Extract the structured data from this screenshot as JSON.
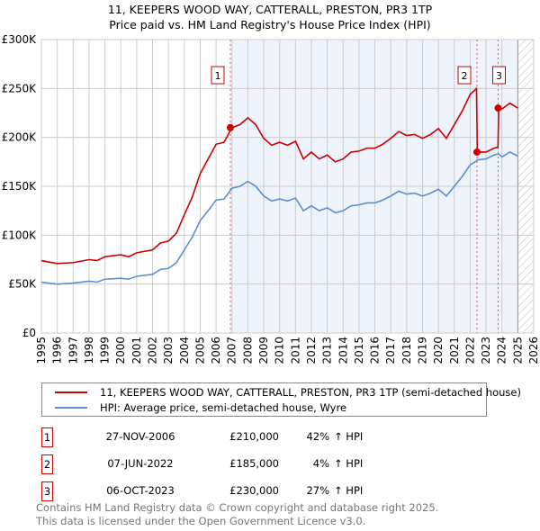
{
  "title_line1": "11, KEEPERS WOOD WAY, CATTERALL, PRESTON, PR3 1TP",
  "title_line2": "Price paid vs. HM Land Registry's House Price Index (HPI)",
  "colors": {
    "property": "#cc0000",
    "hpi": "#5b8fd0",
    "shade": "#eef3fc"
  },
  "chart_data": {
    "type": "line",
    "title": "11, KEEPERS WOOD WAY, CATTERALL, PRESTON, PR3 1TP — Price paid vs. HM Land Registry's House Price Index (HPI)",
    "xlim": [
      1995,
      2026
    ],
    "ylim": [
      0,
      300000
    ],
    "x_ticks": [
      "1995",
      "1996",
      "1997",
      "1998",
      "1999",
      "2000",
      "2001",
      "2002",
      "2003",
      "2004",
      "2005",
      "2006",
      "2007",
      "2008",
      "2009",
      "2010",
      "2011",
      "2012",
      "2013",
      "2014",
      "2015",
      "2016",
      "2017",
      "2018",
      "2019",
      "2020",
      "2021",
      "2022",
      "2023",
      "2024",
      "2025",
      "2026"
    ],
    "y_ticks": [
      {
        "v": 0,
        "label": "£0"
      },
      {
        "v": 50000,
        "label": "£50K"
      },
      {
        "v": 100000,
        "label": "£100K"
      },
      {
        "v": 150000,
        "label": "£150K"
      },
      {
        "v": 200000,
        "label": "£200K"
      },
      {
        "v": 250000,
        "label": "£250K"
      },
      {
        "v": 300000,
        "label": "£300K"
      }
    ],
    "grid": true,
    "shaded_range": [
      2006.9,
      2025
    ],
    "future_hatched_from": 2025,
    "series": [
      {
        "name": "11, KEEPERS WOOD WAY, CATTERALL, PRESTON, PR3 1TP (semi-detached house)",
        "color": "#cc0000",
        "x": [
          1995,
          1996,
          1997,
          1998,
          1998.5,
          1999,
          2000,
          2000.5,
          2001,
          2002,
          2002.5,
          2003,
          2003.5,
          2004,
          2004.5,
          2005,
          2005.5,
          2006,
          2006.5,
          2007,
          2007.5,
          2008,
          2008.5,
          2009,
          2009.5,
          2010,
          2010.5,
          2011,
          2011.5,
          2012,
          2012.5,
          2013,
          2013.5,
          2014,
          2014.5,
          2015,
          2015.5,
          2016,
          2016.5,
          2017,
          2017.5,
          2018,
          2018.5,
          2019,
          2019.5,
          2020,
          2020.5,
          2021,
          2021.5,
          2022,
          2022.4,
          2022.45,
          2023,
          2023.5,
          2023.75,
          2023.8,
          2024,
          2024.5,
          2025
        ],
        "y": [
          74000,
          71000,
          72000,
          75000,
          74000,
          78000,
          80000,
          78000,
          82000,
          85000,
          92000,
          94000,
          102000,
          121000,
          139000,
          163000,
          178000,
          193000,
          195000,
          210000,
          213000,
          220000,
          213000,
          199000,
          192000,
          195000,
          192000,
          196000,
          178000,
          185000,
          178000,
          182000,
          175000,
          178000,
          185000,
          186000,
          189000,
          189000,
          193000,
          199000,
          206000,
          202000,
          203000,
          199000,
          203000,
          209000,
          199000,
          213000,
          227000,
          244000,
          250000,
          185000,
          185000,
          189000,
          190000,
          230000,
          229000,
          235000,
          230000
        ]
      },
      {
        "name": "HPI: Average price, semi-detached house, Wyre",
        "color": "#5b8fd0",
        "x": [
          1995,
          1996,
          1997,
          1998,
          1998.5,
          1999,
          2000,
          2000.5,
          2001,
          2002,
          2002.5,
          2003,
          2003.5,
          2004,
          2004.5,
          2005,
          2005.5,
          2006,
          2006.5,
          2007,
          2007.5,
          2008,
          2008.5,
          2009,
          2009.5,
          2010,
          2010.5,
          2011,
          2011.5,
          2012,
          2012.5,
          2013,
          2013.5,
          2014,
          2014.5,
          2015,
          2015.5,
          2016,
          2016.5,
          2017,
          2017.5,
          2018,
          2018.5,
          2019,
          2019.5,
          2020,
          2020.5,
          2021,
          2021.5,
          2022,
          2022.4,
          2022.45,
          2023,
          2023.5,
          2023.75,
          2023.8,
          2024,
          2024.5,
          2025
        ],
        "y": [
          52000,
          50000,
          51000,
          53000,
          52000,
          55000,
          56000,
          55000,
          58000,
          60000,
          65000,
          66000,
          72000,
          85000,
          98000,
          115000,
          125000,
          136000,
          137000,
          148000,
          150000,
          155000,
          150000,
          140000,
          135000,
          137000,
          135000,
          138000,
          125000,
          130000,
          125000,
          128000,
          123000,
          125000,
          130000,
          131000,
          133000,
          133000,
          136000,
          140000,
          145000,
          142000,
          143000,
          140000,
          143000,
          147000,
          140000,
          150000,
          160000,
          172000,
          176000,
          177000,
          178000,
          182000,
          183000,
          183000,
          180000,
          185000,
          181000
        ]
      }
    ],
    "sales": [
      {
        "id": "1",
        "x": 2006.9,
        "date": "27-NOV-2006",
        "price": "£210,000",
        "value": 210000,
        "hpi_pct": "42%",
        "hpi_label": "↑ HPI"
      },
      {
        "id": "2",
        "x": 2022.43,
        "date": "07-JUN-2022",
        "price": "£185,000",
        "value": 185000,
        "hpi_pct": "4%",
        "hpi_label": "↑ HPI"
      },
      {
        "id": "3",
        "x": 2023.76,
        "date": "06-OCT-2023",
        "price": "£230,000",
        "value": 230000,
        "hpi_pct": "27%",
        "hpi_label": "↑ HPI"
      }
    ]
  },
  "footer_line1": "Contains HM Land Registry data © Crown copyright and database right 2025.",
  "footer_line2": "This data is licensed under the Open Government Licence v3.0."
}
